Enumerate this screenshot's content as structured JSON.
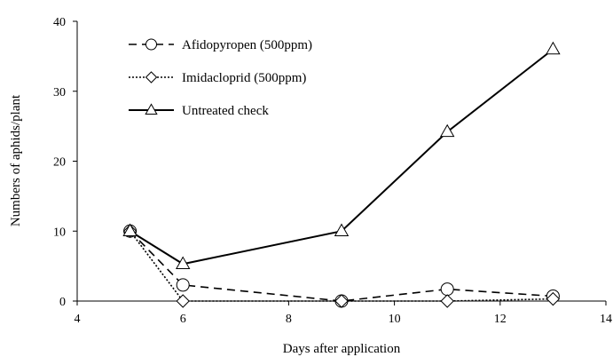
{
  "chart_data": {
    "type": "line",
    "title": "",
    "xlabel": "Days after application",
    "ylabel": "Numbers of aphids/plant",
    "xlim": [
      4,
      14
    ],
    "ylim": [
      0,
      40
    ],
    "xticks": [
      4,
      6,
      8,
      10,
      12,
      14
    ],
    "yticks": [
      0,
      10,
      20,
      30,
      40
    ],
    "grid": false,
    "legend_position": "top-left",
    "series": [
      {
        "name": "Afidopyropen (500ppm)",
        "marker": "circle",
        "line_style": "dashed",
        "x": [
          5,
          6,
          9,
          11,
          13
        ],
        "y": [
          10.0,
          2.3,
          0.0,
          1.7,
          0.7
        ]
      },
      {
        "name": "Imidacloprid (500ppm)",
        "marker": "diamond",
        "line_style": "dotted",
        "x": [
          5,
          6,
          9,
          11,
          13
        ],
        "y": [
          10.0,
          0.0,
          0.0,
          0.0,
          0.3
        ]
      },
      {
        "name": "Untreated check",
        "marker": "triangle",
        "line_style": "solid",
        "x": [
          5,
          6,
          9,
          11,
          13
        ],
        "y": [
          10.0,
          5.3,
          10.0,
          24.2,
          36.0
        ]
      }
    ]
  }
}
